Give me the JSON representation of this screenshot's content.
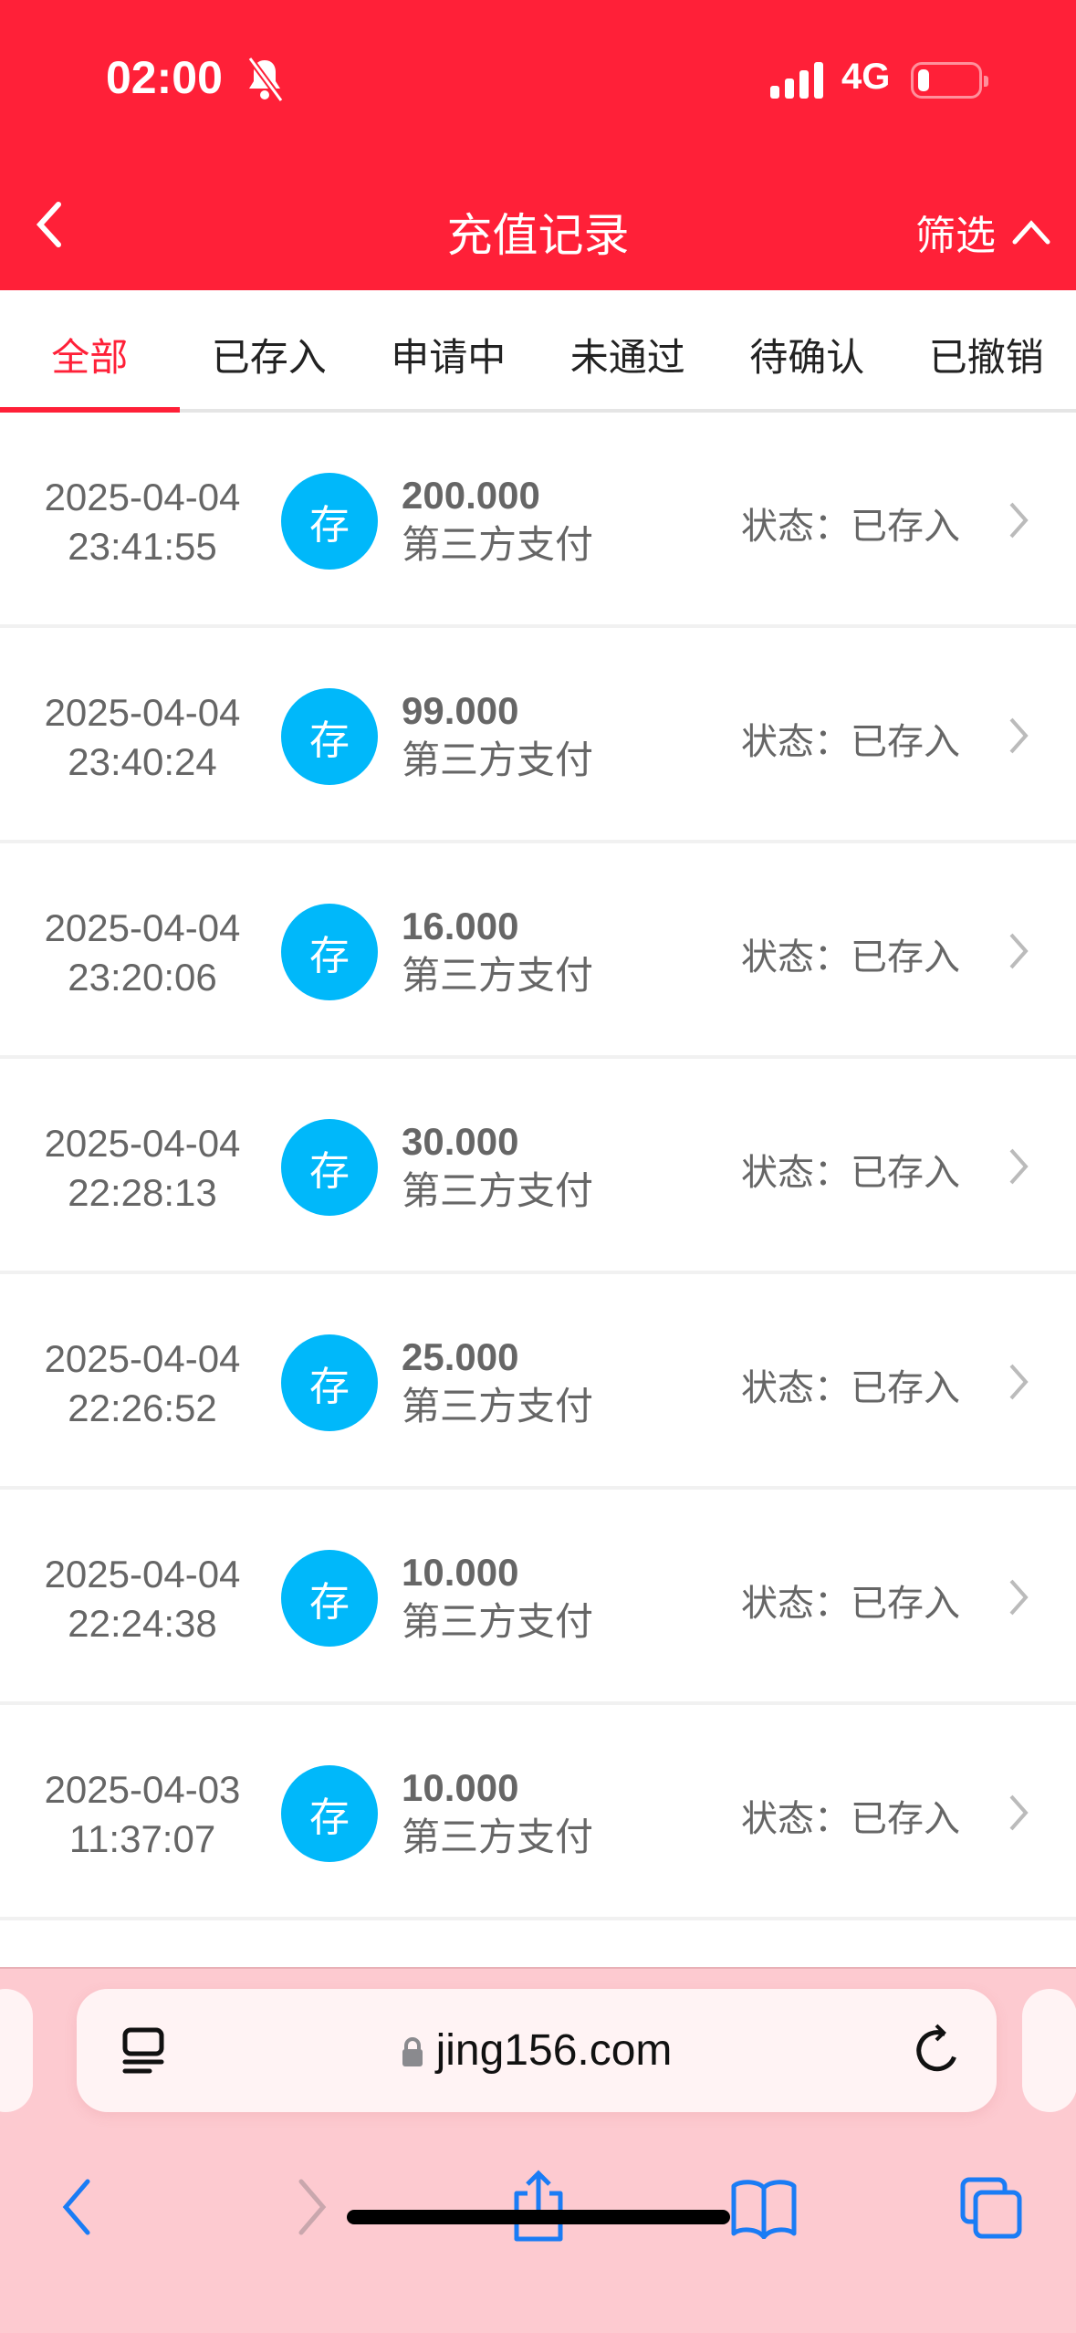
{
  "status_bar": {
    "time": "02:00",
    "network": "4G",
    "battery_percent": 10
  },
  "header": {
    "title": "充值记录",
    "filter_label": "筛选"
  },
  "tabs": [
    {
      "label": "全部",
      "active": true
    },
    {
      "label": "已存入"
    },
    {
      "label": "申请中"
    },
    {
      "label": "未通过"
    },
    {
      "label": "待确认"
    },
    {
      "label": "已撤销"
    }
  ],
  "records": [
    {
      "date": "2025-04-04",
      "time": "23:41:55",
      "badge": "存",
      "amount": "200.000",
      "method": "第三方支付",
      "status": "状态：已存入"
    },
    {
      "date": "2025-04-04",
      "time": "23:40:24",
      "badge": "存",
      "amount": "99.000",
      "method": "第三方支付",
      "status": "状态：已存入"
    },
    {
      "date": "2025-04-04",
      "time": "23:20:06",
      "badge": "存",
      "amount": "16.000",
      "method": "第三方支付",
      "status": "状态：已存入"
    },
    {
      "date": "2025-04-04",
      "time": "22:28:13",
      "badge": "存",
      "amount": "30.000",
      "method": "第三方支付",
      "status": "状态：已存入"
    },
    {
      "date": "2025-04-04",
      "time": "22:26:52",
      "badge": "存",
      "amount": "25.000",
      "method": "第三方支付",
      "status": "状态：已存入"
    },
    {
      "date": "2025-04-04",
      "time": "22:24:38",
      "badge": "存",
      "amount": "10.000",
      "method": "第三方支付",
      "status": "状态：已存入"
    },
    {
      "date": "2025-04-03",
      "time": "11:37:07",
      "badge": "存",
      "amount": "10.000",
      "method": "第三方支付",
      "status": "状态：已存入"
    }
  ],
  "browser": {
    "url": "jing156.com"
  },
  "colors": {
    "brand": "#FF2038",
    "badge": "#00B8FA",
    "toolbar": "#FDCAD0",
    "ios_blue": "#1A7CF5"
  }
}
